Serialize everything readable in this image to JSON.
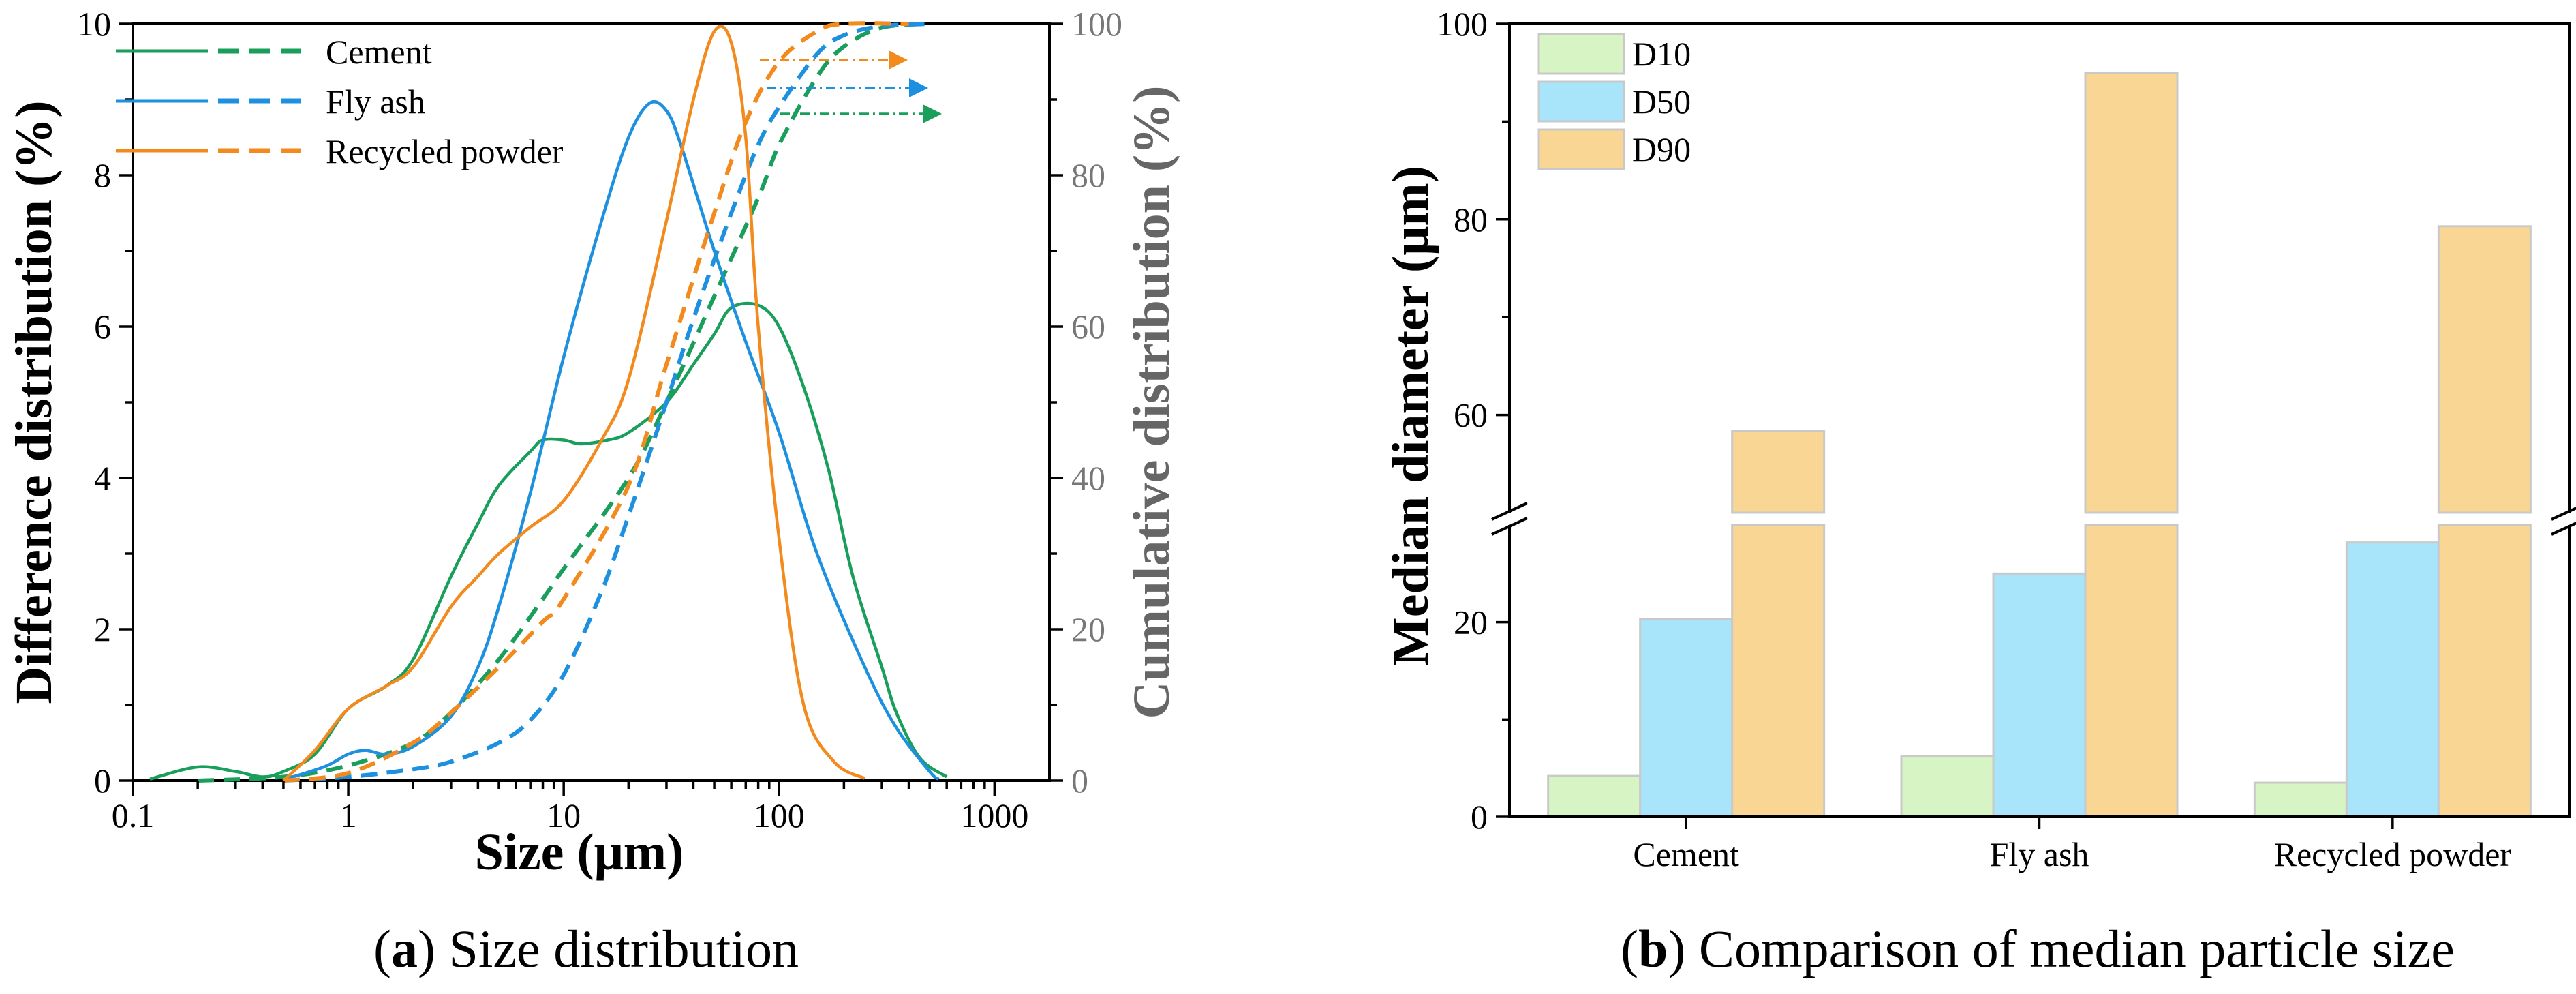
{
  "colors": {
    "cement": "#1a9e5c",
    "fly_ash": "#1e90e0",
    "recycled_powder": "#f28a1e",
    "d10": "#d7f5c4",
    "d50": "#a8e4fa",
    "d90": "#f9d694",
    "bar_edge": "#c9c9c9"
  },
  "captions": {
    "a_letter": "a",
    "a_text": " Size distribution",
    "b_letter": "b",
    "b_text": " Comparison of median particle size"
  },
  "chart_data": [
    {
      "type": "line",
      "xscale": "log",
      "xlabel": "Size (μm)",
      "ylabel": "Difference distribution (%)",
      "y2label": "Cumulative distribution (%)",
      "xlim": [
        0.1,
        1800
      ],
      "ylim": [
        0,
        10
      ],
      "y2lim": [
        0,
        100
      ],
      "x_ticks": [
        0.1,
        1,
        10,
        100,
        1000
      ],
      "x_tick_labels": [
        "0.1",
        "1",
        "10",
        "100",
        "1000"
      ],
      "y_ticks": [
        0,
        2,
        4,
        6,
        8,
        10
      ],
      "y_tick_labels": [
        "0",
        "2",
        "4",
        "6",
        "8",
        "10"
      ],
      "y2_ticks": [
        0,
        20,
        40,
        60,
        80,
        100
      ],
      "y2_tick_labels": [
        "0",
        "20",
        "40",
        "60",
        "80",
        "100"
      ],
      "legend": [
        "Cement",
        "Fly ash",
        "Recycled powder"
      ],
      "legend_position": "top-left",
      "series": [
        {
          "name": "Cement",
          "color_key": "cement",
          "difference": [
            [
              0.12,
              0.02
            ],
            [
              0.2,
              0.18
            ],
            [
              0.3,
              0.12
            ],
            [
              0.4,
              0.05
            ],
            [
              0.5,
              0.12
            ],
            [
              0.7,
              0.35
            ],
            [
              1.0,
              0.95
            ],
            [
              1.5,
              1.25
            ],
            [
              2,
              1.6
            ],
            [
              3,
              2.7
            ],
            [
              4,
              3.4
            ],
            [
              5,
              3.9
            ],
            [
              7,
              4.35
            ],
            [
              8,
              4.5
            ],
            [
              10,
              4.5
            ],
            [
              12,
              4.45
            ],
            [
              16,
              4.5
            ],
            [
              20,
              4.6
            ],
            [
              30,
              5.0
            ],
            [
              40,
              5.5
            ],
            [
              50,
              5.9
            ],
            [
              60,
              6.25
            ],
            [
              80,
              6.28
            ],
            [
              100,
              6.0
            ],
            [
              130,
              5.2
            ],
            [
              170,
              4.1
            ],
            [
              220,
              2.7
            ],
            [
              300,
              1.5
            ],
            [
              350,
              0.9
            ],
            [
              450,
              0.3
            ],
            [
              600,
              0.05
            ]
          ],
          "cumulative": [
            [
              0.2,
              0
            ],
            [
              0.5,
              0.5
            ],
            [
              1,
              2
            ],
            [
              2,
              5
            ],
            [
              3,
              9
            ],
            [
              5,
              16
            ],
            [
              8,
              24
            ],
            [
              10,
              28
            ],
            [
              20,
              40
            ],
            [
              30,
              50
            ],
            [
              50,
              64
            ],
            [
              80,
              77
            ],
            [
              100,
              84
            ],
            [
              150,
              93
            ],
            [
              200,
              97
            ],
            [
              300,
              99.5
            ],
            [
              500,
              100
            ]
          ]
        },
        {
          "name": "Fly ash",
          "color_key": "fly_ash",
          "difference": [
            [
              0.5,
              0.02
            ],
            [
              0.6,
              0.08
            ],
            [
              0.8,
              0.2
            ],
            [
              1,
              0.35
            ],
            [
              1.2,
              0.4
            ],
            [
              1.5,
              0.35
            ],
            [
              2,
              0.45
            ],
            [
              3,
              0.85
            ],
            [
              4,
              1.5
            ],
            [
              5,
              2.3
            ],
            [
              7,
              3.8
            ],
            [
              10,
              5.6
            ],
            [
              15,
              7.4
            ],
            [
              20,
              8.5
            ],
            [
              25,
              8.95
            ],
            [
              30,
              8.85
            ],
            [
              35,
              8.4
            ],
            [
              50,
              7.0
            ],
            [
              70,
              5.8
            ],
            [
              100,
              4.6
            ],
            [
              150,
              3.0
            ],
            [
              250,
              1.5
            ],
            [
              350,
              0.7
            ],
            [
              500,
              0.12
            ],
            [
              550,
              0.02
            ]
          ],
          "cumulative": [
            [
              0.5,
              0
            ],
            [
              1,
              0.5
            ],
            [
              2,
              1.5
            ],
            [
              3,
              2.5
            ],
            [
              5,
              5
            ],
            [
              7,
              8
            ],
            [
              10,
              14
            ],
            [
              15,
              25
            ],
            [
              20,
              35
            ],
            [
              30,
              50
            ],
            [
              40,
              61
            ],
            [
              60,
              75
            ],
            [
              80,
              84
            ],
            [
              100,
              89
            ],
            [
              150,
              96
            ],
            [
              200,
              98.5
            ],
            [
              300,
              99.7
            ],
            [
              500,
              100
            ]
          ]
        },
        {
          "name": "Recycled powder",
          "color_key": "recycled_powder",
          "difference": [
            [
              0.5,
              0.0
            ],
            [
              0.7,
              0.4
            ],
            [
              1,
              0.95
            ],
            [
              1.5,
              1.25
            ],
            [
              2,
              1.5
            ],
            [
              3,
              2.3
            ],
            [
              4,
              2.7
            ],
            [
              5,
              3.0
            ],
            [
              7,
              3.35
            ],
            [
              10,
              3.7
            ],
            [
              15,
              4.5
            ],
            [
              20,
              5.3
            ],
            [
              30,
              7.4
            ],
            [
              40,
              9.0
            ],
            [
              50,
              9.9
            ],
            [
              60,
              9.75
            ],
            [
              70,
              8.5
            ],
            [
              80,
              6.0
            ],
            [
              100,
              3.2
            ],
            [
              130,
              1.0
            ],
            [
              180,
              0.25
            ],
            [
              250,
              0.03
            ]
          ],
          "cumulative": [
            [
              0.5,
              0
            ],
            [
              1,
              1
            ],
            [
              2,
              5
            ],
            [
              3,
              9
            ],
            [
              5,
              15
            ],
            [
              8,
              21
            ],
            [
              10,
              24
            ],
            [
              20,
              39
            ],
            [
              30,
              55
            ],
            [
              50,
              75
            ],
            [
              70,
              87
            ],
            [
              100,
              95
            ],
            [
              150,
              99
            ],
            [
              200,
              100
            ],
            [
              400,
              100
            ]
          ]
        }
      ]
    },
    {
      "type": "bar",
      "ylabel": "Median diameter (μm)",
      "categories": [
        "Cement",
        "Fly ash",
        "Recycled powder"
      ],
      "legend": [
        "D10",
        "D50",
        "D90"
      ],
      "legend_position": "top-left",
      "broken_axis": {
        "lower_range": [
          0,
          30
        ],
        "upper_range": [
          50,
          100
        ]
      },
      "y_ticks": [
        0,
        20,
        60,
        80,
        100
      ],
      "y_tick_labels": [
        "0",
        "20",
        "60",
        "80",
        "100"
      ],
      "series": [
        {
          "name": "D10",
          "color_key": "d10",
          "values": [
            4.2,
            6.2,
            3.5
          ]
        },
        {
          "name": "D50",
          "color_key": "d50",
          "values": [
            20.3,
            25.0,
            28.2
          ]
        },
        {
          "name": "D90",
          "color_key": "d90",
          "values": [
            58.4,
            95.0,
            79.3
          ]
        }
      ]
    }
  ]
}
